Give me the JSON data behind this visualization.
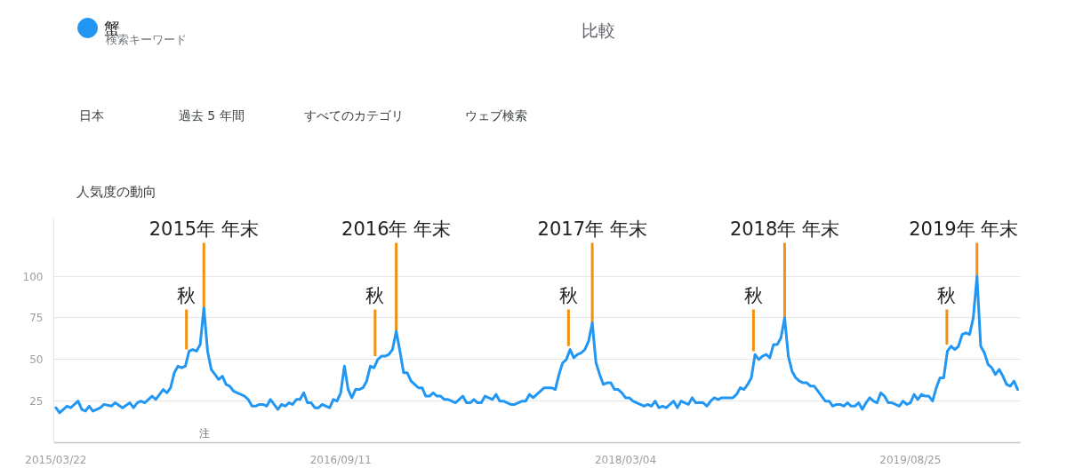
{
  "chart_data": {
    "type": "line",
    "title": "人気度の動向",
    "annotations": [
      "検索キーワード",
      "比較",
      "日本",
      "過去 5 年間",
      "すべてのカテゴリ",
      "ウェブ検索",
      "注",
      {
        "text": "秋",
        "x": "2015-11-24",
        "y": 56
      },
      {
        "text": "2015年 年末",
        "x": "2015-12-27",
        "y": 81
      },
      {
        "text": "秋",
        "x": "2016-11-15",
        "y": 52
      },
      {
        "text": "2016年 年末",
        "x": "2016-12-25",
        "y": 67
      },
      {
        "text": "秋",
        "x": "2017-11-16",
        "y": 58
      },
      {
        "text": "2017年 年末",
        "x": "2017-12-31",
        "y": 72
      },
      {
        "text": "秋",
        "x": "2018-11-01",
        "y": 55
      },
      {
        "text": "2018年 年末",
        "x": "2018-12-30",
        "y": 75
      },
      {
        "text": "秋",
        "x": "2019-11-02",
        "y": 59
      },
      {
        "text": "2019年 年末",
        "x": "2019-12-29",
        "y": 100
      }
    ],
    "x": [
      "2015-03-22",
      "2015-03-29",
      "2015-04-12",
      "2015-04-19",
      "2015-05-03",
      "2015-05-10",
      "2015-05-17",
      "2015-05-24",
      "2015-05-31",
      "2015-06-07",
      "2015-06-14",
      "2015-06-21",
      "2015-07-05",
      "2015-07-12",
      "2015-07-26",
      "2015-08-09",
      "2015-08-16",
      "2015-08-23",
      "2015-08-30",
      "2015-09-06",
      "2015-09-20",
      "2015-09-27",
      "2015-10-11",
      "2015-10-18",
      "2015-10-25",
      "2015-11-01",
      "2015-11-08",
      "2015-11-15",
      "2015-11-22",
      "2015-11-29",
      "2015-12-06",
      "2015-12-13",
      "2015-12-20",
      "2015-12-27",
      "2016-01-03",
      "2016-01-10",
      "2016-01-17",
      "2016-01-24",
      "2016-01-31",
      "2016-02-07",
      "2016-02-14",
      "2016-02-21",
      "2016-02-28",
      "2016-03-06",
      "2016-03-13",
      "2016-03-20",
      "2016-03-27",
      "2016-04-03",
      "2016-04-10",
      "2016-04-17",
      "2016-04-24",
      "2016-05-01",
      "2016-05-08",
      "2016-05-15",
      "2016-05-22",
      "2016-05-29",
      "2016-06-05",
      "2016-06-12",
      "2016-06-19",
      "2016-06-26",
      "2016-07-03",
      "2016-07-10",
      "2016-07-17",
      "2016-07-24",
      "2016-07-31",
      "2016-08-07",
      "2016-08-14",
      "2016-08-21",
      "2016-08-28",
      "2016-09-04",
      "2016-09-11",
      "2016-09-18",
      "2016-09-25",
      "2016-10-02",
      "2016-10-09",
      "2016-10-16",
      "2016-10-23",
      "2016-10-30",
      "2016-11-06",
      "2016-11-13",
      "2016-11-20",
      "2016-11-27",
      "2016-12-04",
      "2016-12-11",
      "2016-12-18",
      "2016-12-25",
      "2017-01-01",
      "2017-01-08",
      "2017-01-15",
      "2017-01-22",
      "2017-01-29",
      "2017-02-05",
      "2017-02-12",
      "2017-02-19",
      "2017-02-26",
      "2017-03-05",
      "2017-03-12",
      "2017-03-19",
      "2017-03-26",
      "2017-04-02",
      "2017-04-09",
      "2017-04-16",
      "2017-04-30",
      "2017-05-07",
      "2017-05-14",
      "2017-05-21",
      "2017-05-28",
      "2017-06-04",
      "2017-06-11",
      "2017-06-18",
      "2017-06-25",
      "2017-07-02",
      "2017-07-09",
      "2017-07-16",
      "2017-07-23",
      "2017-07-30",
      "2017-08-06",
      "2017-08-13",
      "2017-08-20",
      "2017-08-27",
      "2017-09-03",
      "2017-09-10",
      "2017-09-17",
      "2017-09-24",
      "2017-10-01",
      "2017-10-08",
      "2017-10-15",
      "2017-10-22",
      "2017-10-29",
      "2017-11-05",
      "2017-11-12",
      "2017-11-19",
      "2017-11-26",
      "2017-12-03",
      "2017-12-10",
      "2017-12-17",
      "2017-12-24",
      "2017-12-31",
      "2018-01-07",
      "2018-01-14",
      "2018-01-21",
      "2018-01-28",
      "2018-02-04",
      "2018-02-11",
      "2018-02-18",
      "2018-02-25",
      "2018-03-04",
      "2018-03-11",
      "2018-03-18",
      "2018-03-25",
      "2018-04-01",
      "2018-04-08",
      "2018-04-15",
      "2018-04-22",
      "2018-04-29",
      "2018-05-06",
      "2018-05-13",
      "2018-05-20",
      "2018-05-27",
      "2018-06-03",
      "2018-06-10",
      "2018-06-17",
      "2018-06-24",
      "2018-07-01",
      "2018-07-08",
      "2018-07-15",
      "2018-07-22",
      "2018-07-29",
      "2018-08-05",
      "2018-08-12",
      "2018-08-19",
      "2018-08-26",
      "2018-09-02",
      "2018-09-09",
      "2018-09-16",
      "2018-09-23",
      "2018-09-30",
      "2018-10-07",
      "2018-10-14",
      "2018-10-21",
      "2018-10-28",
      "2018-11-04",
      "2018-11-11",
      "2018-11-18",
      "2018-11-25",
      "2018-12-02",
      "2018-12-09",
      "2018-12-16",
      "2018-12-23",
      "2018-12-30",
      "2019-01-06",
      "2019-01-13",
      "2019-01-20",
      "2019-01-27",
      "2019-02-03",
      "2019-02-10",
      "2019-02-17",
      "2019-02-24",
      "2019-03-03",
      "2019-03-10",
      "2019-03-17",
      "2019-03-24",
      "2019-03-31",
      "2019-04-07",
      "2019-04-14",
      "2019-04-21",
      "2019-04-28",
      "2019-05-05",
      "2019-05-12",
      "2019-05-19",
      "2019-05-26",
      "2019-06-02",
      "2019-06-09",
      "2019-06-16",
      "2019-06-23",
      "2019-06-30",
      "2019-07-07",
      "2019-07-14",
      "2019-07-21",
      "2019-07-28",
      "2019-08-04",
      "2019-08-11",
      "2019-08-18",
      "2019-08-25",
      "2019-09-01",
      "2019-09-08",
      "2019-09-15",
      "2019-09-22",
      "2019-09-29",
      "2019-10-06",
      "2019-10-13",
      "2019-10-20",
      "2019-10-27",
      "2019-11-03",
      "2019-11-10",
      "2019-11-17",
      "2019-11-24",
      "2019-12-01",
      "2019-12-08",
      "2019-12-15",
      "2019-12-22",
      "2019-12-29",
      "2020-01-05",
      "2020-01-12",
      "2020-01-19",
      "2020-01-26",
      "2020-02-02",
      "2020-02-09",
      "2020-02-16",
      "2020-02-23",
      "2020-03-01",
      "2020-03-08",
      "2020-03-15"
    ],
    "series": [
      {
        "name": "蟹",
        "color": "#2196f3",
        "values": [
          21,
          18,
          22,
          21,
          25,
          20,
          19,
          22,
          19,
          20,
          21,
          23,
          22,
          24,
          21,
          24,
          21,
          24,
          25,
          24,
          28,
          26,
          32,
          30,
          33,
          42,
          46,
          45,
          46,
          55,
          56,
          55,
          59,
          81,
          55,
          44,
          41,
          38,
          40,
          35,
          34,
          31,
          30,
          29,
          28,
          26,
          22,
          22,
          23,
          23,
          22,
          26,
          23,
          20,
          23,
          22,
          24,
          23,
          26,
          26,
          30,
          24,
          24,
          21,
          21,
          23,
          22,
          21,
          26,
          25,
          30,
          46,
          32,
          27,
          32,
          32,
          33,
          37,
          46,
          45,
          50,
          52,
          52,
          53,
          56,
          67,
          55,
          42,
          42,
          37,
          35,
          33,
          33,
          28,
          28,
          30,
          28,
          28,
          26,
          26,
          25,
          24,
          28,
          24,
          24,
          26,
          24,
          24,
          28,
          27,
          26,
          29,
          25,
          25,
          24,
          23,
          23,
          24,
          25,
          25,
          29,
          27,
          29,
          31,
          33,
          33,
          33,
          32,
          41,
          48,
          50,
          56,
          51,
          53,
          54,
          56,
          61,
          72,
          48,
          41,
          35,
          36,
          36,
          32,
          32,
          30,
          27,
          27,
          25,
          24,
          23,
          22,
          23,
          22,
          25,
          21,
          22,
          21,
          23,
          25,
          21,
          25,
          24,
          23,
          27,
          24,
          24,
          24,
          22,
          25,
          27,
          26,
          27,
          27,
          27,
          27,
          29,
          33,
          32,
          35,
          39,
          53,
          50,
          52,
          53,
          51,
          59,
          59,
          63,
          75,
          52,
          43,
          39,
          37,
          36,
          36,
          34,
          34,
          31,
          28,
          25,
          25,
          22,
          23,
          23,
          22,
          24,
          22,
          22,
          24,
          20,
          24,
          27,
          25,
          24,
          30,
          28,
          24,
          24,
          23,
          22,
          25,
          23,
          24,
          29,
          26,
          29,
          28,
          28,
          25,
          33,
          39,
          39,
          55,
          58,
          56,
          58,
          65,
          66,
          65,
          75,
          100,
          58,
          54,
          47,
          45,
          41,
          44,
          40,
          35,
          34,
          37,
          32
        ]
      }
    ],
    "xlim": [
      "2015-03-18",
      "2020-03-20"
    ],
    "ylim": [
      0,
      135
    ],
    "xticks": [
      {
        "value": "2015-03-22",
        "label": "2015/03/22"
      },
      {
        "value": "2016-09-11",
        "label": "2016/09/11"
      },
      {
        "value": "2018-03-04",
        "label": "2018/03/04"
      },
      {
        "value": "2019-08-25",
        "label": "2019/08/25"
      }
    ],
    "yticks": [
      25,
      50,
      75,
      100
    ],
    "grid": "y",
    "legend": "top left"
  }
}
